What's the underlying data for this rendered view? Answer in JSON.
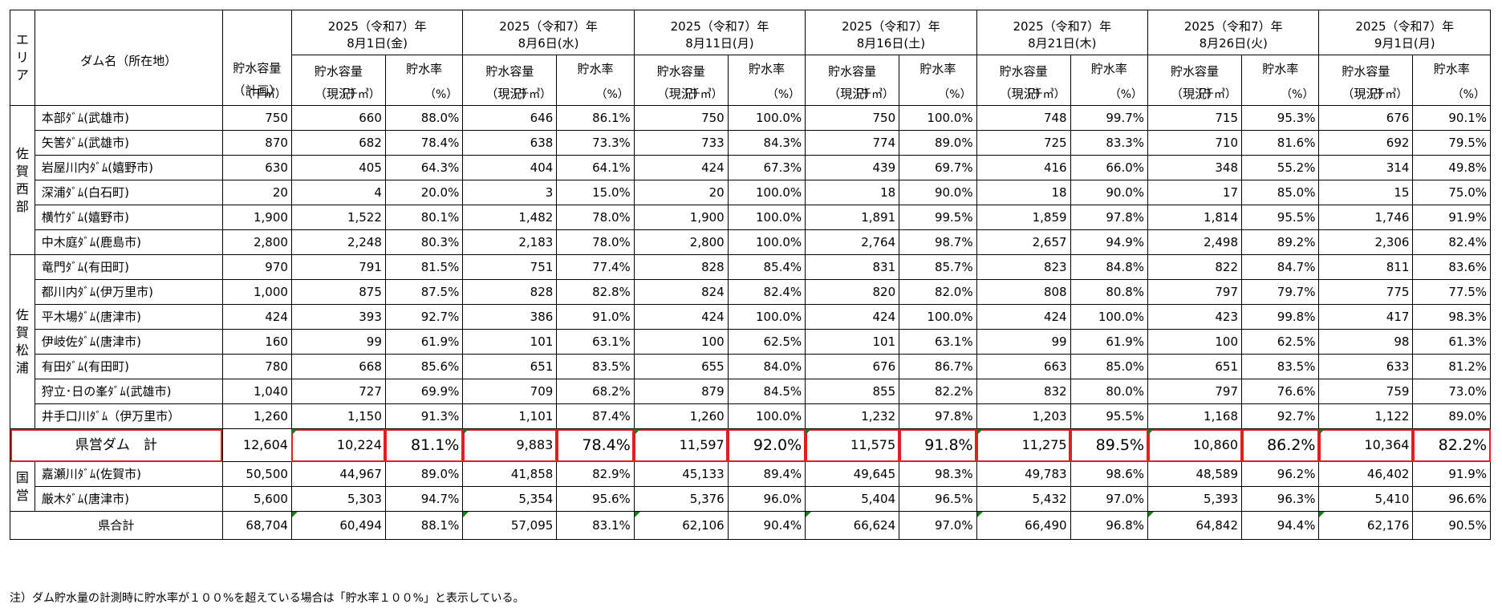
{
  "headers": {
    "area": "エリア",
    "dam_name": "ダム名（所在地）",
    "plan_cap_l1": "貯水容量",
    "plan_cap_l2": "（計画）",
    "unit_cap": "（千㎥）",
    "cur_cap_l1": "貯水容量",
    "cur_cap_l2": "（現況）",
    "rate": "貯水率",
    "unit_rate": "（%）"
  },
  "dates": [
    {
      "l1": "2025（令和7）年",
      "l2": "8月1日(金)"
    },
    {
      "l1": "2025（令和7）年",
      "l2": "8月6日(水)"
    },
    {
      "l1": "2025（令和7）年",
      "l2": "8月11日(月)"
    },
    {
      "l1": "2025（令和7）年",
      "l2": "8月16日(土)"
    },
    {
      "l1": "2025（令和7）年",
      "l2": "8月21日(木)"
    },
    {
      "l1": "2025（令和7）年",
      "l2": "8月26日(火)"
    },
    {
      "l1": "2025（令和7）年",
      "l2": "9月1日(月)"
    }
  ],
  "areas": [
    {
      "name": "佐賀西部",
      "rows": [
        {
          "dam": "本部ﾀﾞﾑ(武雄市)",
          "plan": "750",
          "vals": [
            "660",
            "88.0%",
            "646",
            "86.1%",
            "750",
            "100.0%",
            "750",
            "100.0%",
            "748",
            "99.7%",
            "715",
            "95.3%",
            "676",
            "90.1%"
          ]
        },
        {
          "dam": "矢筈ﾀﾞﾑ(武雄市)",
          "plan": "870",
          "vals": [
            "682",
            "78.4%",
            "638",
            "73.3%",
            "733",
            "84.3%",
            "774",
            "89.0%",
            "725",
            "83.3%",
            "710",
            "81.6%",
            "692",
            "79.5%"
          ]
        },
        {
          "dam": "岩屋川内ﾀﾞﾑ(嬉野市)",
          "plan": "630",
          "vals": [
            "405",
            "64.3%",
            "404",
            "64.1%",
            "424",
            "67.3%",
            "439",
            "69.7%",
            "416",
            "66.0%",
            "348",
            "55.2%",
            "314",
            "49.8%"
          ]
        },
        {
          "dam": "深浦ﾀﾞﾑ(白石町)",
          "plan": "20",
          "vals": [
            "4",
            "20.0%",
            "3",
            "15.0%",
            "20",
            "100.0%",
            "18",
            "90.0%",
            "18",
            "90.0%",
            "17",
            "85.0%",
            "15",
            "75.0%"
          ]
        },
        {
          "dam": "横竹ﾀﾞﾑ(嬉野市)",
          "plan": "1,900",
          "vals": [
            "1,522",
            "80.1%",
            "1,482",
            "78.0%",
            "1,900",
            "100.0%",
            "1,891",
            "99.5%",
            "1,859",
            "97.8%",
            "1,814",
            "95.5%",
            "1,746",
            "91.9%"
          ]
        },
        {
          "dam": "中木庭ﾀﾞﾑ(鹿島市)",
          "plan": "2,800",
          "vals": [
            "2,248",
            "80.3%",
            "2,183",
            "78.0%",
            "2,800",
            "100.0%",
            "2,764",
            "98.7%",
            "2,657",
            "94.9%",
            "2,498",
            "89.2%",
            "2,306",
            "82.4%"
          ]
        }
      ]
    },
    {
      "name": "佐賀松浦",
      "rows": [
        {
          "dam": "竜門ﾀﾞﾑ(有田町)",
          "plan": "970",
          "vals": [
            "791",
            "81.5%",
            "751",
            "77.4%",
            "828",
            "85.4%",
            "831",
            "85.7%",
            "823",
            "84.8%",
            "822",
            "84.7%",
            "811",
            "83.6%"
          ]
        },
        {
          "dam": "都川内ﾀﾞﾑ(伊万里市)",
          "plan": "1,000",
          "vals": [
            "875",
            "87.5%",
            "828",
            "82.8%",
            "824",
            "82.4%",
            "820",
            "82.0%",
            "808",
            "80.8%",
            "797",
            "79.7%",
            "775",
            "77.5%"
          ]
        },
        {
          "dam": "平木場ﾀﾞﾑ(唐津市)",
          "plan": "424",
          "vals": [
            "393",
            "92.7%",
            "386",
            "91.0%",
            "424",
            "100.0%",
            "424",
            "100.0%",
            "424",
            "100.0%",
            "423",
            "99.8%",
            "417",
            "98.3%"
          ]
        },
        {
          "dam": "伊岐佐ﾀﾞﾑ(唐津市)",
          "plan": "160",
          "vals": [
            "99",
            "61.9%",
            "101",
            "63.1%",
            "100",
            "62.5%",
            "101",
            "63.1%",
            "99",
            "61.9%",
            "100",
            "62.5%",
            "98",
            "61.3%"
          ]
        },
        {
          "dam": "有田ﾀﾞﾑ(有田町)",
          "plan": "780",
          "vals": [
            "668",
            "85.6%",
            "651",
            "83.5%",
            "655",
            "84.0%",
            "676",
            "86.7%",
            "663",
            "85.0%",
            "651",
            "83.5%",
            "633",
            "81.2%"
          ]
        },
        {
          "dam": "狩立･日の峯ﾀﾞﾑ(武雄市)",
          "plan": "1,040",
          "vals": [
            "727",
            "69.9%",
            "709",
            "68.2%",
            "879",
            "84.5%",
            "855",
            "82.2%",
            "832",
            "80.0%",
            "797",
            "76.6%",
            "759",
            "73.0%"
          ]
        },
        {
          "dam": "井手口川ﾀﾞﾑ（伊万里市）",
          "plan": "1,260",
          "vals": [
            "1,150",
            "91.3%",
            "1,101",
            "87.4%",
            "1,260",
            "100.0%",
            "1,232",
            "97.8%",
            "1,203",
            "95.5%",
            "1,168",
            "92.7%",
            "1,122",
            "89.0%"
          ]
        }
      ]
    }
  ],
  "pref_total": {
    "label": "県営ダム　計",
    "plan": "12,604",
    "vals": [
      "10,224",
      "81.1%",
      "9,883",
      "78.4%",
      "11,597",
      "92.0%",
      "11,575",
      "91.8%",
      "11,275",
      "89.5%",
      "10,860",
      "86.2%",
      "10,364",
      "82.2%"
    ]
  },
  "national": {
    "name": "国営",
    "rows": [
      {
        "dam": "嘉瀬川ﾀﾞﾑ(佐賀市)",
        "plan": "50,500",
        "vals": [
          "44,967",
          "89.0%",
          "41,858",
          "82.9%",
          "45,133",
          "89.4%",
          "49,645",
          "98.3%",
          "49,783",
          "98.6%",
          "48,589",
          "96.2%",
          "46,402",
          "91.9%"
        ]
      },
      {
        "dam": "厳木ﾀﾞﾑ(唐津市)",
        "plan": "5,600",
        "vals": [
          "5,303",
          "94.7%",
          "5,354",
          "95.6%",
          "5,376",
          "96.0%",
          "5,404",
          "96.5%",
          "5,432",
          "97.0%",
          "5,393",
          "96.3%",
          "5,410",
          "96.6%"
        ]
      }
    ]
  },
  "grand_total": {
    "label": "県合計",
    "plan": "68,704",
    "vals": [
      "60,494",
      "88.1%",
      "57,095",
      "83.1%",
      "62,106",
      "90.4%",
      "66,624",
      "97.0%",
      "66,490",
      "96.8%",
      "64,842",
      "94.4%",
      "62,176",
      "90.5%"
    ]
  },
  "note": "注）ダム貯水量の計測時に貯水率が１００%を超えている場合は「貯水率１００%」と表示している。",
  "colors": {
    "highlight_border": "#e02020",
    "marker": "#1a7a1a"
  }
}
